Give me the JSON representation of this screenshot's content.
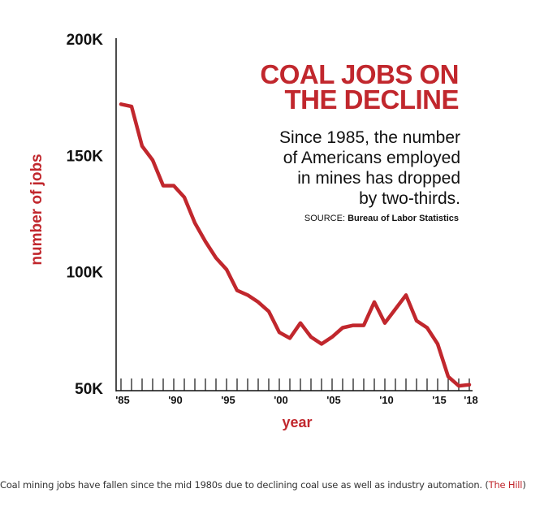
{
  "chart_data": {
    "type": "line",
    "title": "COAL JOBS ON THE DECLINE",
    "title_lines": [
      "COAL JOBS ON",
      "THE DECLINE"
    ],
    "subtitle_lines": [
      "Since 1985, the number",
      "of Americans employed",
      "in mines has dropped",
      "by two-thirds."
    ],
    "source_label": "SOURCE:",
    "source_name": "Bureau of Labor Statistics",
    "xlabel": "year",
    "ylabel": "number of jobs",
    "xlim": [
      1985,
      2018
    ],
    "ylim": [
      50000,
      200000
    ],
    "yticks": [
      50000,
      100000,
      150000,
      200000
    ],
    "ytick_labels": [
      "50K",
      "100K",
      "150K",
      "200K"
    ],
    "xtick_years": [
      1985,
      1990,
      1995,
      2000,
      2005,
      2010,
      2015,
      2018
    ],
    "xtick_labels": [
      "'85",
      "'90",
      "'95",
      "'00",
      "'05",
      "'10",
      "'15",
      "'18"
    ],
    "minor_tick_years": [
      1985,
      1986,
      1987,
      1988,
      1989,
      1990,
      1991,
      1992,
      1993,
      1994,
      1995,
      1996,
      1997,
      1998,
      1999,
      2000,
      2001,
      2002,
      2003,
      2004,
      2005,
      2006,
      2007,
      2008,
      2009,
      2010,
      2011,
      2012,
      2013,
      2014,
      2015,
      2016,
      2017,
      2018
    ],
    "grid": false,
    "series": [
      {
        "name": "Coal mining jobs",
        "color": "#c1272d",
        "x": [
          1985,
          1986,
          1987,
          1988,
          1989,
          1990,
          1991,
          1992,
          1993,
          1994,
          1995,
          1996,
          1997,
          1998,
          1999,
          2000,
          2001,
          2002,
          2003,
          2004,
          2005,
          2006,
          2007,
          2008,
          2009,
          2010,
          2011,
          2012,
          2013,
          2014,
          2015,
          2016,
          2017,
          2018
        ],
        "values": [
          172000,
          171000,
          154000,
          148000,
          137000,
          137000,
          132000,
          121000,
          113000,
          106000,
          101000,
          92000,
          90000,
          87000,
          83000,
          74000,
          71500,
          78000,
          72000,
          69000,
          72000,
          76000,
          77000,
          77000,
          87000,
          78000,
          84000,
          90000,
          79000,
          76000,
          69000,
          55000,
          51000,
          51500
        ]
      }
    ]
  },
  "caption": {
    "text": "Coal mining jobs have fallen since the mid 1980s due to declining coal use as well as industry automation.",
    "credit_open": "(",
    "credit": "The Hill",
    "credit_close": ")"
  },
  "colors": {
    "accent": "#c1272d",
    "axis": "#111111",
    "text": "#111111"
  }
}
